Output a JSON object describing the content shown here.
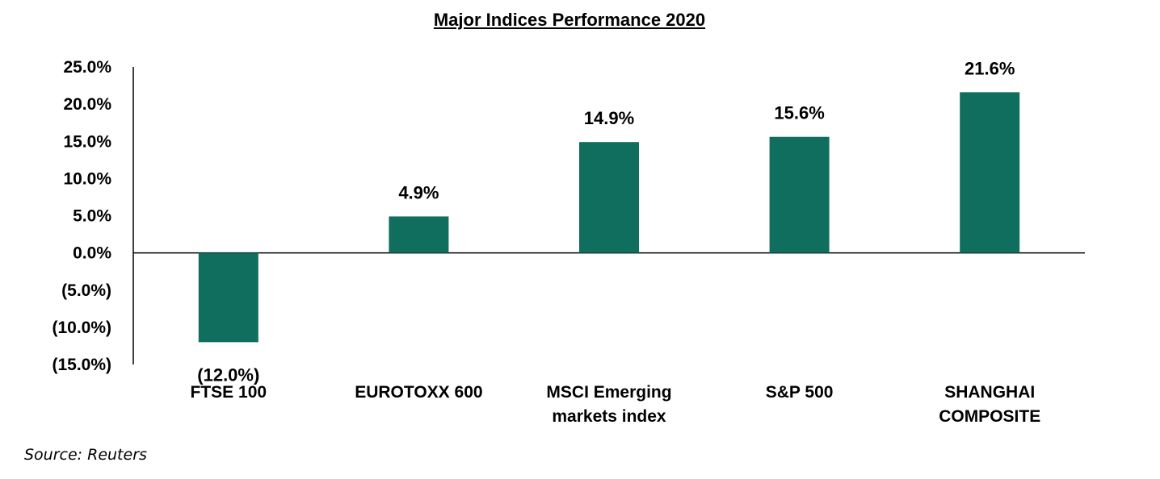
{
  "chart_data": {
    "type": "bar",
    "title": "Major Indices Performance 2020",
    "categories": [
      [
        "FTSE 100"
      ],
      [
        "EUROTOXX 600"
      ],
      [
        "MSCI Emerging",
        "markets index"
      ],
      [
        "S&P 500"
      ],
      [
        "SHANGHAI",
        "COMPOSITE"
      ]
    ],
    "values": [
      -12.0,
      4.9,
      14.9,
      15.6,
      21.6
    ],
    "value_labels": [
      "(12.0%)",
      "4.9%",
      "14.9%",
      "15.6%",
      "21.6%"
    ],
    "ylim": [
      -15.0,
      25.0
    ],
    "y_ticks": [
      25.0,
      20.0,
      15.0,
      10.0,
      5.0,
      0.0,
      -5.0,
      -10.0,
      -15.0
    ],
    "y_tick_labels": [
      "25.0%",
      "20.0%",
      "15.0%",
      "10.0%",
      "5.0%",
      "0.0%",
      "(5.0%)",
      "(10.0%)",
      "(15.0%)"
    ],
    "bar_color": "#0f6e5d",
    "grid": false,
    "legend": "none"
  },
  "source": "Source: Reuters"
}
